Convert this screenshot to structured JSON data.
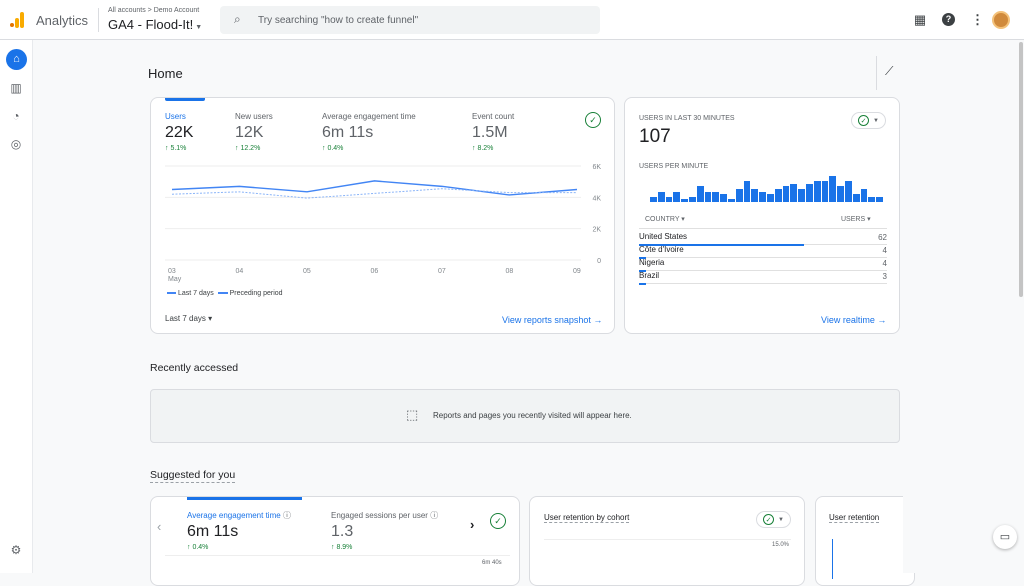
{
  "header": {
    "app_name": "Analytics",
    "breadcrumb": "All accounts > Demo Account",
    "property": "GA4 - Flood-It!",
    "search_placeholder": "Try searching \"how to create funnel\""
  },
  "page_title": "Home",
  "overview": {
    "metrics": [
      {
        "label": "Users",
        "value": "22K",
        "change": "↑ 5.1%"
      },
      {
        "label": "New users",
        "value": "12K",
        "change": "↑ 12.2%"
      },
      {
        "label": "Average engagement time",
        "value": "6m 11s",
        "change": "↑ 0.4%"
      },
      {
        "label": "Event count",
        "value": "1.5M",
        "change": "↑ 8.2%"
      }
    ],
    "legend": [
      "Last 7 days",
      "Preceding period"
    ],
    "date_range": "Last 7 days",
    "link": "View reports snapshot",
    "colors": {
      "accent": "#1a73e8",
      "positive": "#188038"
    }
  },
  "chart_data": {
    "type": "line",
    "categories": [
      "03",
      "04",
      "05",
      "06",
      "07",
      "08",
      "09"
    ],
    "x_sublabel": "May",
    "yticks": [
      "0",
      "2K",
      "4K",
      "6K"
    ],
    "ylim": [
      0,
      6000
    ],
    "series": [
      {
        "name": "Last 7 days",
        "values": [
          4500,
          4700,
          4350,
          5050,
          4700,
          4150,
          4500
        ],
        "style": "solid"
      },
      {
        "name": "Preceding period",
        "values": [
          4200,
          4350,
          3950,
          4250,
          4550,
          4300,
          4300
        ],
        "style": "dashed"
      }
    ]
  },
  "realtime": {
    "title": "USERS IN LAST 30 MINUTES",
    "value": "107",
    "subtitle": "USERS PER MINUTE",
    "per_minute": [
      2,
      4,
      2,
      4,
      1,
      2,
      6,
      4,
      4,
      3,
      1,
      5,
      8,
      5,
      4,
      3,
      5,
      6,
      7,
      5,
      7,
      8,
      8,
      10,
      6,
      8,
      3,
      5,
      2,
      2
    ],
    "col_country": "COUNTRY",
    "col_users": "USERS",
    "rows": [
      {
        "country": "United States",
        "users": "62"
      },
      {
        "country": "Côte d'Ivoire",
        "users": "4"
      },
      {
        "country": "Nigeria",
        "users": "4"
      },
      {
        "country": "Brazil",
        "users": "3"
      }
    ],
    "link": "View realtime"
  },
  "recent": {
    "title": "Recently accessed",
    "empty": "Reports and pages you recently visited will appear here."
  },
  "suggested": {
    "title": "Suggested for you",
    "card1": {
      "m1_label": "Average engagement time",
      "m1_value": "6m 11s",
      "m1_change": "↑ 0.4%",
      "m2_label": "Engaged sessions per user",
      "m2_value": "1.3",
      "m2_change": "↑ 8.9%",
      "axis": "6m 40s"
    },
    "card2": {
      "title": "User retention by cohort",
      "axis": "15.0%"
    },
    "card3": {
      "title": "User retention"
    }
  }
}
